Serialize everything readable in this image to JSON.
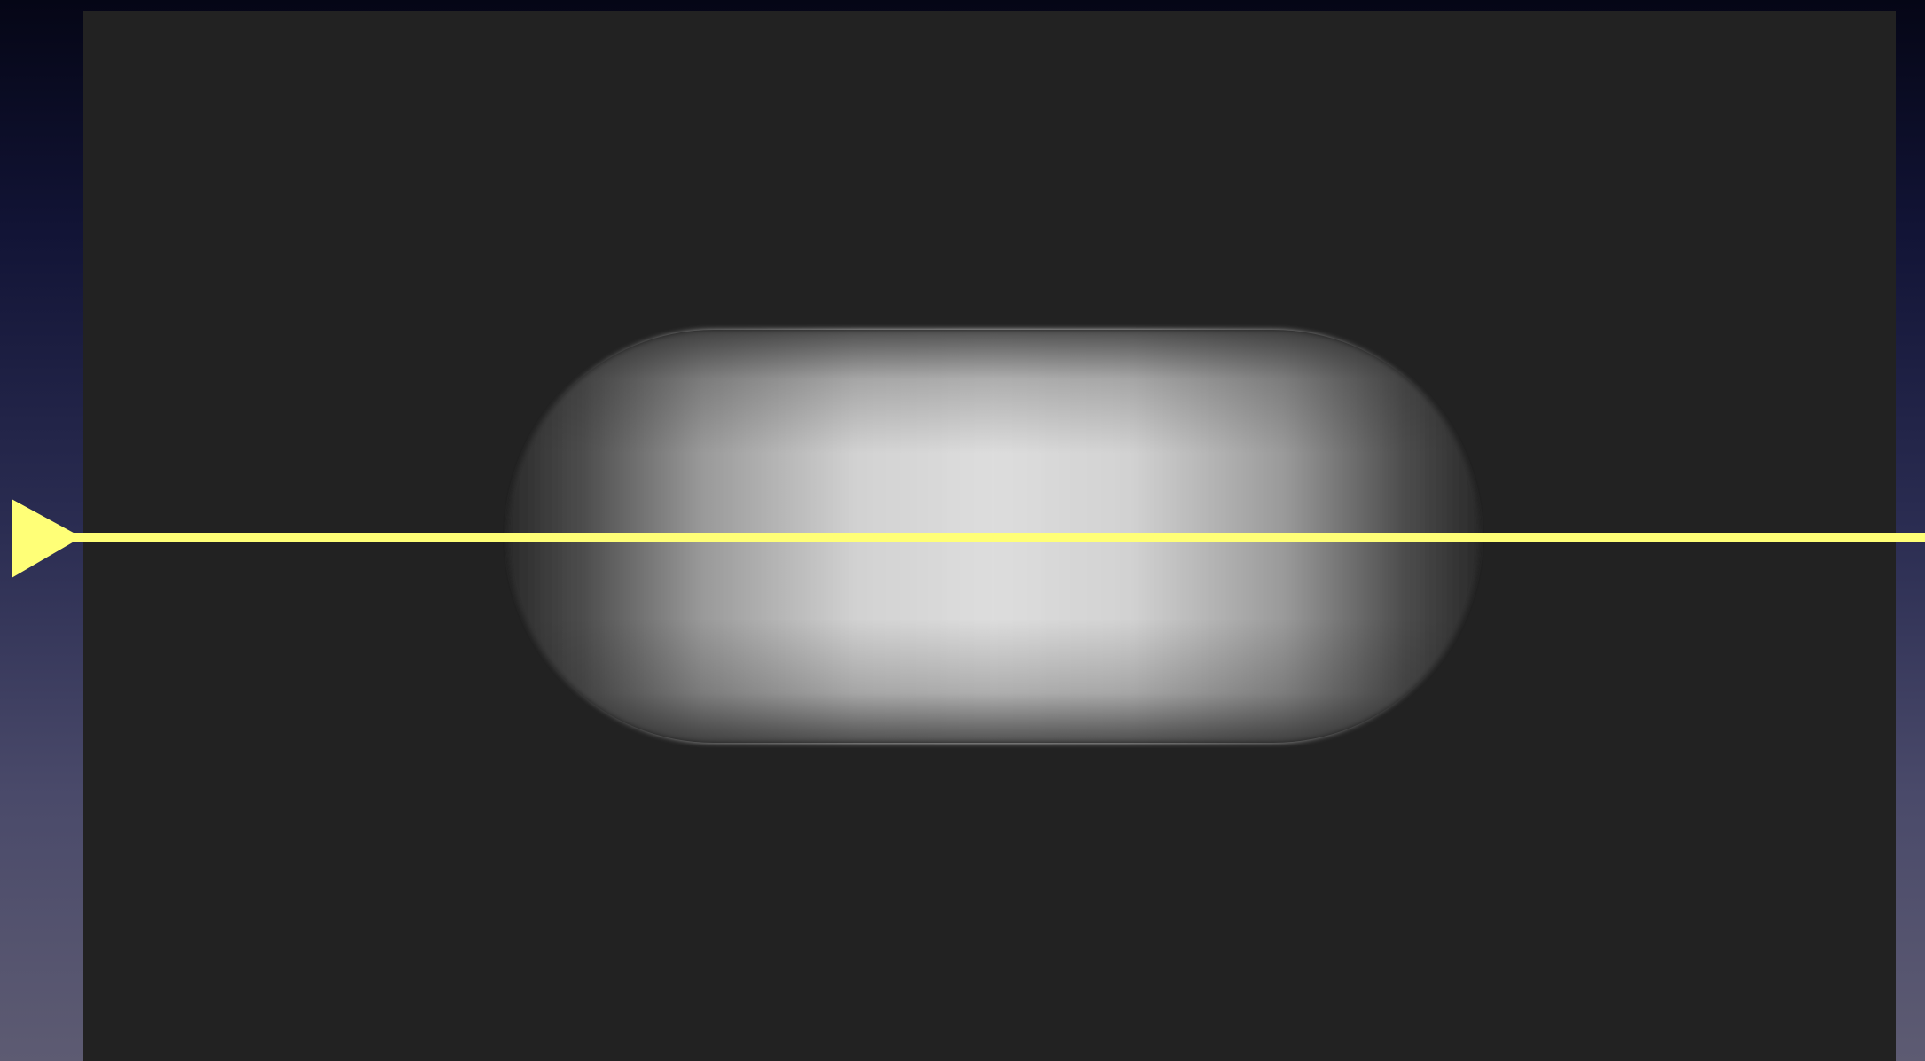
{
  "diagram": {
    "colors": {
      "background_top": "#050616",
      "background_bottom": "#5d5b72",
      "panel": "#222222",
      "capsule_center": "#dcdcdc",
      "capsule_edge": "#2a2a2a",
      "ray": "#ffff77"
    },
    "shapes": {
      "object": "capsule",
      "ray": "horizontal-line-with-arrowhead",
      "arrowhead_direction": "right"
    }
  }
}
